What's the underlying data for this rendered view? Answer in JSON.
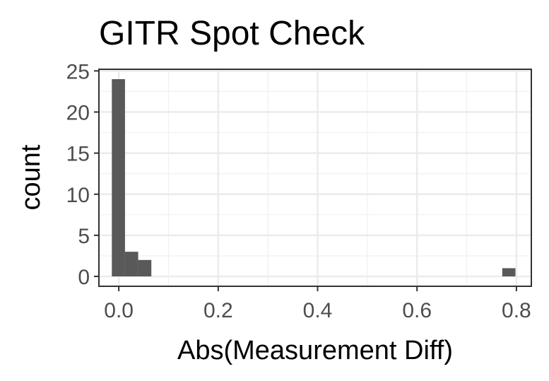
{
  "chart_data": {
    "type": "bar",
    "title": "GITR Spot Check",
    "xlabel": "Abs(Measurement Diff)",
    "ylabel": "count",
    "xlim": [
      -0.04,
      0.83
    ],
    "ylim": [
      -1.2,
      25.2
    ],
    "x_ticks": [
      0.0,
      0.2,
      0.4,
      0.6,
      0.8
    ],
    "x_tick_labels": [
      "0.0",
      "0.2",
      "0.4",
      "0.6",
      "0.8"
    ],
    "y_ticks": [
      0,
      5,
      10,
      15,
      20,
      25
    ],
    "y_tick_labels": [
      "0",
      "5",
      "10",
      "15",
      "20",
      "25"
    ],
    "x_minor_ticks": [
      0.1,
      0.3,
      0.5,
      0.7
    ],
    "y_minor_ticks": [
      2.5,
      7.5,
      12.5,
      17.5,
      22.5
    ],
    "grid": true,
    "bar_color": "#595959",
    "bins": [
      {
        "x0": -0.014,
        "x1": 0.0125,
        "count": 24
      },
      {
        "x0": 0.0125,
        "x1": 0.039,
        "count": 3
      },
      {
        "x0": 0.039,
        "x1": 0.0655,
        "count": 2
      },
      {
        "x0": 0.7715,
        "x1": 0.798,
        "count": 1
      }
    ]
  }
}
